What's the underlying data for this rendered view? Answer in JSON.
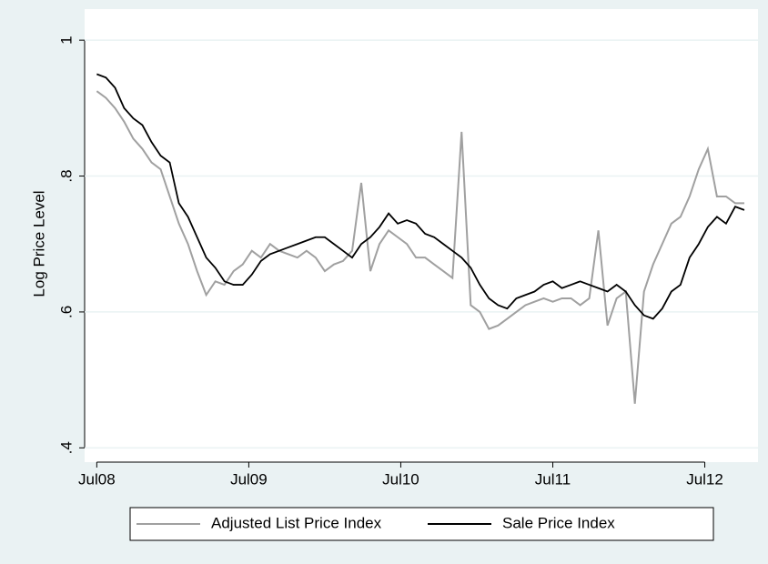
{
  "chart_data": {
    "type": "line",
    "y_label": "Log Price Level",
    "x": [
      2008.5,
      2008.56,
      2008.62,
      2008.68,
      2008.74,
      2008.8,
      2008.86,
      2008.92,
      2008.98,
      2009.04,
      2009.1,
      2009.16,
      2009.22,
      2009.28,
      2009.34,
      2009.4,
      2009.46,
      2009.52,
      2009.58,
      2009.64,
      2009.7,
      2009.76,
      2009.82,
      2009.88,
      2009.94,
      2010,
      2010.06,
      2010.12,
      2010.18,
      2010.24,
      2010.3,
      2010.36,
      2010.42,
      2010.48,
      2010.54,
      2010.6,
      2010.66,
      2010.72,
      2010.78,
      2010.84,
      2010.9,
      2010.96,
      2011.02,
      2011.08,
      2011.14,
      2011.2,
      2011.26,
      2011.32,
      2011.38,
      2011.44,
      2011.5,
      2011.56,
      2011.62,
      2011.68,
      2011.74,
      2011.8,
      2011.86,
      2011.92,
      2011.98,
      2012.04,
      2012.1,
      2012.16,
      2012.22,
      2012.28,
      2012.34,
      2012.4,
      2012.46,
      2012.52,
      2012.58,
      2012.64,
      2012.7,
      2012.76
    ],
    "series": [
      {
        "name": "Adjusted List Price Index",
        "color": "#a0a0a0",
        "values": [
          0.925,
          0.915,
          0.9,
          0.88,
          0.855,
          0.84,
          0.82,
          0.81,
          0.77,
          0.73,
          0.7,
          0.66,
          0.625,
          0.645,
          0.64,
          0.66,
          0.67,
          0.69,
          0.68,
          0.7,
          0.69,
          0.685,
          0.68,
          0.69,
          0.68,
          0.66,
          0.67,
          0.675,
          0.69,
          0.79,
          0.66,
          0.7,
          0.72,
          0.71,
          0.7,
          0.68,
          0.68,
          0.67,
          0.66,
          0.65,
          0.865,
          0.61,
          0.6,
          0.575,
          0.58,
          0.59,
          0.6,
          0.61,
          0.615,
          0.62,
          0.615,
          0.62,
          0.62,
          0.61,
          0.62,
          0.72,
          0.58,
          0.62,
          0.63,
          0.465,
          0.63,
          0.67,
          0.7,
          0.73,
          0.74,
          0.77,
          0.81,
          0.84,
          0.77,
          0.77,
          0.76,
          0.76
        ]
      },
      {
        "name": "Sale Price Index",
        "color": "#000000",
        "values": [
          0.95,
          0.945,
          0.93,
          0.9,
          0.885,
          0.875,
          0.85,
          0.83,
          0.82,
          0.76,
          0.74,
          0.71,
          0.68,
          0.665,
          0.645,
          0.64,
          0.64,
          0.655,
          0.675,
          0.685,
          0.69,
          0.695,
          0.7,
          0.705,
          0.71,
          0.71,
          0.7,
          0.69,
          0.68,
          0.7,
          0.71,
          0.725,
          0.745,
          0.73,
          0.735,
          0.73,
          0.715,
          0.71,
          0.7,
          0.69,
          0.68,
          0.665,
          0.64,
          0.62,
          0.61,
          0.605,
          0.62,
          0.625,
          0.63,
          0.64,
          0.645,
          0.635,
          0.64,
          0.645,
          0.64,
          0.635,
          0.63,
          0.64,
          0.63,
          0.61,
          0.595,
          0.59,
          0.605,
          0.63,
          0.64,
          0.68,
          0.7,
          0.725,
          0.74,
          0.73,
          0.755,
          0.75
        ]
      }
    ],
    "xlim": [
      2008.42,
      2012.85
    ],
    "xticks": [
      {
        "value": 2008.5,
        "label": "Jul08"
      },
      {
        "value": 2009.5,
        "label": "Jul09"
      },
      {
        "value": 2010.5,
        "label": "Jul10"
      },
      {
        "value": 2011.5,
        "label": "Jul11"
      },
      {
        "value": 2012.5,
        "label": "Jul12"
      }
    ],
    "ylim": [
      0.379,
      1.035
    ],
    "yticks": [
      {
        "value": 0.4,
        "label": ".4"
      },
      {
        "value": 0.6,
        "label": ".6"
      },
      {
        "value": 0.8,
        "label": ".8"
      },
      {
        "value": 1,
        "label": "1"
      }
    ],
    "grid": true,
    "legend": "bottom"
  }
}
